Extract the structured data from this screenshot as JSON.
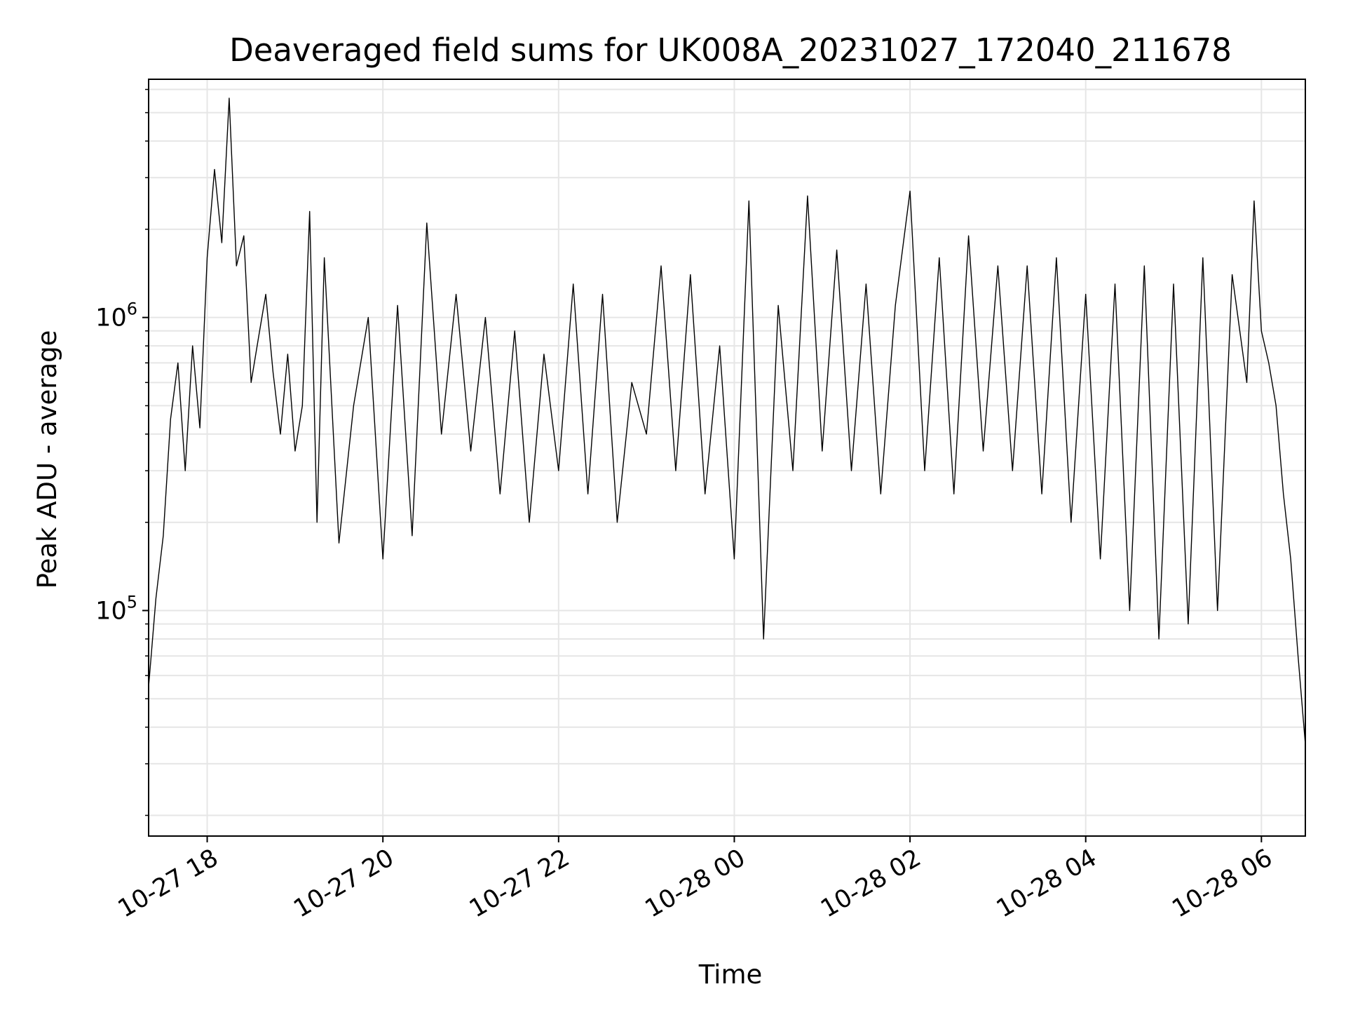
{
  "chart_data": {
    "type": "line",
    "title": "Deaveraged field sums for UK008A_20231027_172040_211678",
    "xlabel": "Time",
    "ylabel": "Peak ADU - average",
    "y_scale": "log",
    "ylim": [
      17000,
      6500000
    ],
    "xlim": [
      "2023-10-27 17:20",
      "2023-10-28 06:30"
    ],
    "x_ticks": [
      {
        "label": "10-27 18",
        "value": "2023-10-27 18:00"
      },
      {
        "label": "10-27 20",
        "value": "2023-10-27 20:00"
      },
      {
        "label": "10-27 22",
        "value": "2023-10-27 22:00"
      },
      {
        "label": "10-28 00",
        "value": "2023-10-28 00:00"
      },
      {
        "label": "10-28 02",
        "value": "2023-10-28 02:00"
      },
      {
        "label": "10-28 04",
        "value": "2023-10-28 04:00"
      },
      {
        "label": "10-28 06",
        "value": "2023-10-28 06:00"
      }
    ],
    "y_ticks": [
      {
        "base": "10",
        "exp": "5",
        "value": 100000
      },
      {
        "base": "10",
        "exp": "6",
        "value": 1000000
      }
    ],
    "grid": true,
    "line_color": "#000000",
    "grid_color": "#e6e6e6",
    "series": [
      {
        "color": "#000000",
        "points": [
          [
            "2023-10-27 17:20",
            55000
          ],
          [
            "2023-10-27 17:25",
            110000
          ],
          [
            "2023-10-27 17:30",
            180000
          ],
          [
            "2023-10-27 17:35",
            450000
          ],
          [
            "2023-10-27 17:40",
            700000
          ],
          [
            "2023-10-27 17:45",
            300000
          ],
          [
            "2023-10-27 17:50",
            800000
          ],
          [
            "2023-10-27 17:55",
            420000
          ],
          [
            "2023-10-27 18:00",
            1600000
          ],
          [
            "2023-10-27 18:05",
            3200000
          ],
          [
            "2023-10-27 18:10",
            1800000
          ],
          [
            "2023-10-27 18:15",
            5600000
          ],
          [
            "2023-10-27 18:20",
            1500000
          ],
          [
            "2023-10-27 18:25",
            1900000
          ],
          [
            "2023-10-27 18:30",
            600000
          ],
          [
            "2023-10-27 18:35",
            850000
          ],
          [
            "2023-10-27 18:40",
            1200000
          ],
          [
            "2023-10-27 18:45",
            650000
          ],
          [
            "2023-10-27 18:50",
            400000
          ],
          [
            "2023-10-27 18:55",
            750000
          ],
          [
            "2023-10-27 19:00",
            350000
          ],
          [
            "2023-10-27 19:05",
            500000
          ],
          [
            "2023-10-27 19:10",
            2300000
          ],
          [
            "2023-10-27 19:15",
            200000
          ],
          [
            "2023-10-27 19:20",
            1600000
          ],
          [
            "2023-10-27 19:30",
            170000
          ],
          [
            "2023-10-27 19:40",
            500000
          ],
          [
            "2023-10-27 19:50",
            1000000
          ],
          [
            "2023-10-27 20:00",
            150000
          ],
          [
            "2023-10-27 20:10",
            1100000
          ],
          [
            "2023-10-27 20:20",
            180000
          ],
          [
            "2023-10-27 20:30",
            2100000
          ],
          [
            "2023-10-27 20:40",
            400000
          ],
          [
            "2023-10-27 20:50",
            1200000
          ],
          [
            "2023-10-27 21:00",
            350000
          ],
          [
            "2023-10-27 21:10",
            1000000
          ],
          [
            "2023-10-27 21:20",
            250000
          ],
          [
            "2023-10-27 21:30",
            900000
          ],
          [
            "2023-10-27 21:40",
            200000
          ],
          [
            "2023-10-27 21:50",
            750000
          ],
          [
            "2023-10-27 22:00",
            300000
          ],
          [
            "2023-10-27 22:10",
            1300000
          ],
          [
            "2023-10-27 22:20",
            250000
          ],
          [
            "2023-10-27 22:30",
            1200000
          ],
          [
            "2023-10-27 22:40",
            200000
          ],
          [
            "2023-10-27 22:50",
            600000
          ],
          [
            "2023-10-27 23:00",
            400000
          ],
          [
            "2023-10-27 23:10",
            1500000
          ],
          [
            "2023-10-27 23:20",
            300000
          ],
          [
            "2023-10-27 23:30",
            1400000
          ],
          [
            "2023-10-27 23:40",
            250000
          ],
          [
            "2023-10-27 23:50",
            800000
          ],
          [
            "2023-10-28 00:00",
            150000
          ],
          [
            "2023-10-28 00:10",
            2500000
          ],
          [
            "2023-10-28 00:20",
            80000
          ],
          [
            "2023-10-28 00:30",
            1100000
          ],
          [
            "2023-10-28 00:40",
            300000
          ],
          [
            "2023-10-28 00:50",
            2600000
          ],
          [
            "2023-10-28 01:00",
            350000
          ],
          [
            "2023-10-28 01:10",
            1700000
          ],
          [
            "2023-10-28 01:20",
            300000
          ],
          [
            "2023-10-28 01:30",
            1300000
          ],
          [
            "2023-10-28 01:40",
            250000
          ],
          [
            "2023-10-28 01:50",
            1100000
          ],
          [
            "2023-10-28 02:00",
            2700000
          ],
          [
            "2023-10-28 02:10",
            300000
          ],
          [
            "2023-10-28 02:20",
            1600000
          ],
          [
            "2023-10-28 02:30",
            250000
          ],
          [
            "2023-10-28 02:40",
            1900000
          ],
          [
            "2023-10-28 02:50",
            350000
          ],
          [
            "2023-10-28 03:00",
            1500000
          ],
          [
            "2023-10-28 03:10",
            300000
          ],
          [
            "2023-10-28 03:20",
            1500000
          ],
          [
            "2023-10-28 03:30",
            250000
          ],
          [
            "2023-10-28 03:40",
            1600000
          ],
          [
            "2023-10-28 03:50",
            200000
          ],
          [
            "2023-10-28 04:00",
            1200000
          ],
          [
            "2023-10-28 04:10",
            150000
          ],
          [
            "2023-10-28 04:20",
            1300000
          ],
          [
            "2023-10-28 04:30",
            100000
          ],
          [
            "2023-10-28 04:40",
            1500000
          ],
          [
            "2023-10-28 04:50",
            80000
          ],
          [
            "2023-10-28 05:00",
            1300000
          ],
          [
            "2023-10-28 05:10",
            90000
          ],
          [
            "2023-10-28 05:20",
            1600000
          ],
          [
            "2023-10-28 05:30",
            100000
          ],
          [
            "2023-10-28 05:40",
            1400000
          ],
          [
            "2023-10-28 05:50",
            600000
          ],
          [
            "2023-10-28 05:55",
            2500000
          ],
          [
            "2023-10-28 06:00",
            900000
          ],
          [
            "2023-10-28 06:05",
            700000
          ],
          [
            "2023-10-28 06:10",
            500000
          ],
          [
            "2023-10-28 06:15",
            250000
          ],
          [
            "2023-10-28 06:20",
            150000
          ],
          [
            "2023-10-28 06:25",
            70000
          ],
          [
            "2023-10-28 06:30",
            35000
          ]
        ]
      }
    ]
  }
}
